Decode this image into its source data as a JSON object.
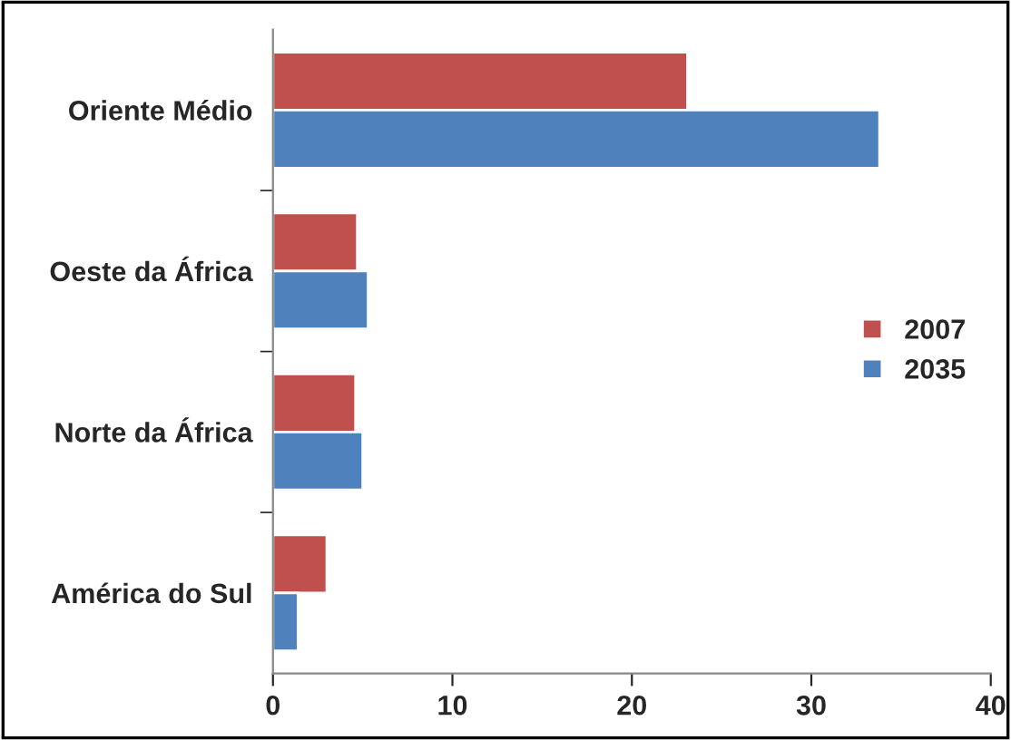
{
  "chart_data": {
    "type": "bar",
    "orientation": "horizontal",
    "categories": [
      "Oriente Médio",
      "Oeste da África",
      "Norte da África",
      "América do Sul"
    ],
    "series": [
      {
        "name": "2007",
        "color": "#c0504d",
        "values": [
          23.1,
          4.7,
          4.6,
          3.0
        ]
      },
      {
        "name": "2035",
        "color": "#4f81bd",
        "values": [
          33.8,
          5.3,
          5.0,
          1.4
        ]
      }
    ],
    "xlim": [
      0,
      40
    ],
    "xticks": [
      0,
      10,
      20,
      30,
      40
    ],
    "grid": false,
    "legend": "right"
  }
}
